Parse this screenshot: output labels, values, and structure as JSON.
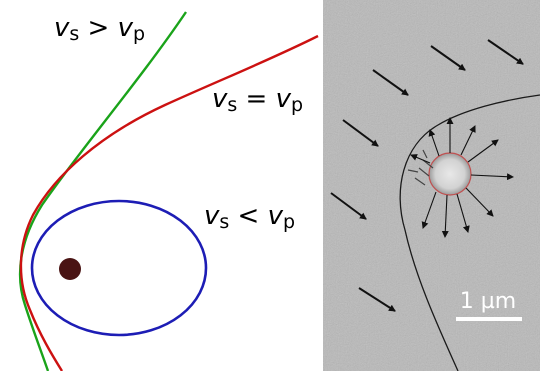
{
  "left_panel": {
    "labels": {
      "greater": {
        "v1": "v",
        "s1": "s",
        "op": " > ",
        "v2": "v",
        "s2": "p"
      },
      "equal": {
        "v1": "v",
        "s1": "s",
        "op": " = ",
        "v2": "v",
        "s2": "p"
      },
      "less": {
        "v1": "v",
        "s1": "s",
        "op": " < ",
        "v2": "v",
        "s2": "p"
      }
    },
    "colors": {
      "greater": "#1aa31a",
      "equal": "#cc1111",
      "less": "#1d1db5",
      "source_dot": "#4a1414"
    }
  },
  "right_panel": {
    "scale_bar_label": "1 µm",
    "colors": {
      "background": "#b9b9b9",
      "arrows": "#111111",
      "front": "#1a1a1a",
      "particle_rim": "#c05050"
    }
  }
}
